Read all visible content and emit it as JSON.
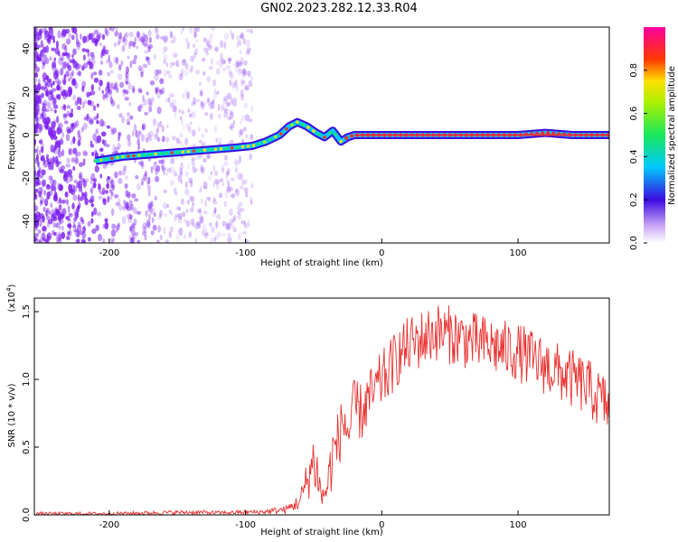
{
  "title": "GN02.2023.282.12.33.R04",
  "colors": {
    "snr_line": "#e8302e",
    "scatter_noise": "#7a1cf0",
    "signal_core": "#e8303a"
  },
  "chart_data": [
    {
      "type": "heatmap",
      "xlabel": "Height of straight line (km)",
      "ylabel": "Frequency (Hz)",
      "xlim": [
        -255,
        167
      ],
      "ylim": [
        -50,
        50
      ],
      "xticks": [
        -200,
        -100,
        0,
        100
      ],
      "yticks": [
        -40,
        -20,
        0,
        20,
        40
      ],
      "colorbar": {
        "label": "Normalized spectral amplitude",
        "range": [
          0,
          1
        ],
        "ticks": [
          "0.0",
          "0.2",
          "0.4",
          "0.6",
          "0.8"
        ],
        "colormap": "rainbow-magenta"
      },
      "track": {
        "x": [
          -210,
          -190,
          -170,
          -150,
          -130,
          -110,
          -95,
          -85,
          -75,
          -68,
          -62,
          -55,
          -48,
          -42,
          -36,
          -30,
          -25,
          -20,
          -10,
          0,
          20,
          60,
          100,
          120,
          140,
          167
        ],
        "y": [
          -12,
          -10,
          -9,
          -8,
          -7,
          -6,
          -5,
          -3,
          0,
          4,
          6,
          4,
          1,
          -1,
          2,
          -3,
          -1,
          0,
          0,
          0,
          0,
          0,
          0,
          1,
          0,
          0
        ]
      }
    },
    {
      "type": "line",
      "xlabel": "Height of straight line (km)",
      "ylabel": "SNR (10 * v/v)",
      "yscale_label": "(x10^4)",
      "xlim": [
        -255,
        167
      ],
      "ylim": [
        0,
        1.6
      ],
      "xticks": [
        -200,
        -100,
        0,
        100
      ],
      "yticks": [
        "0.0",
        "0.5",
        "1.0",
        "1.5"
      ],
      "series": [
        {
          "x": [
            -255,
            -230,
            -200,
            -170,
            -140,
            -120,
            -100,
            -90,
            -80,
            -70,
            -60,
            -55,
            -50,
            -47,
            -44,
            -40,
            -36,
            -32,
            -28,
            -24,
            -20,
            -15,
            -10,
            -5,
            0,
            5,
            10,
            15,
            20,
            30,
            40,
            50,
            60,
            70,
            80,
            90,
            100,
            110,
            120,
            130,
            140,
            150,
            160,
            167
          ],
          "y": [
            0.01,
            0.01,
            0.01,
            0.015,
            0.02,
            0.015,
            0.02,
            0.02,
            0.03,
            0.04,
            0.1,
            0.25,
            0.4,
            0.3,
            0.12,
            0.2,
            0.45,
            0.55,
            0.7,
            0.6,
            0.8,
            0.75,
            0.85,
            0.9,
            1.0,
            1.05,
            1.15,
            1.2,
            1.25,
            1.3,
            1.35,
            1.33,
            1.3,
            1.27,
            1.25,
            1.22,
            1.2,
            1.15,
            1.1,
            1.05,
            1.0,
            0.95,
            0.85,
            0.8
          ]
        }
      ]
    }
  ]
}
